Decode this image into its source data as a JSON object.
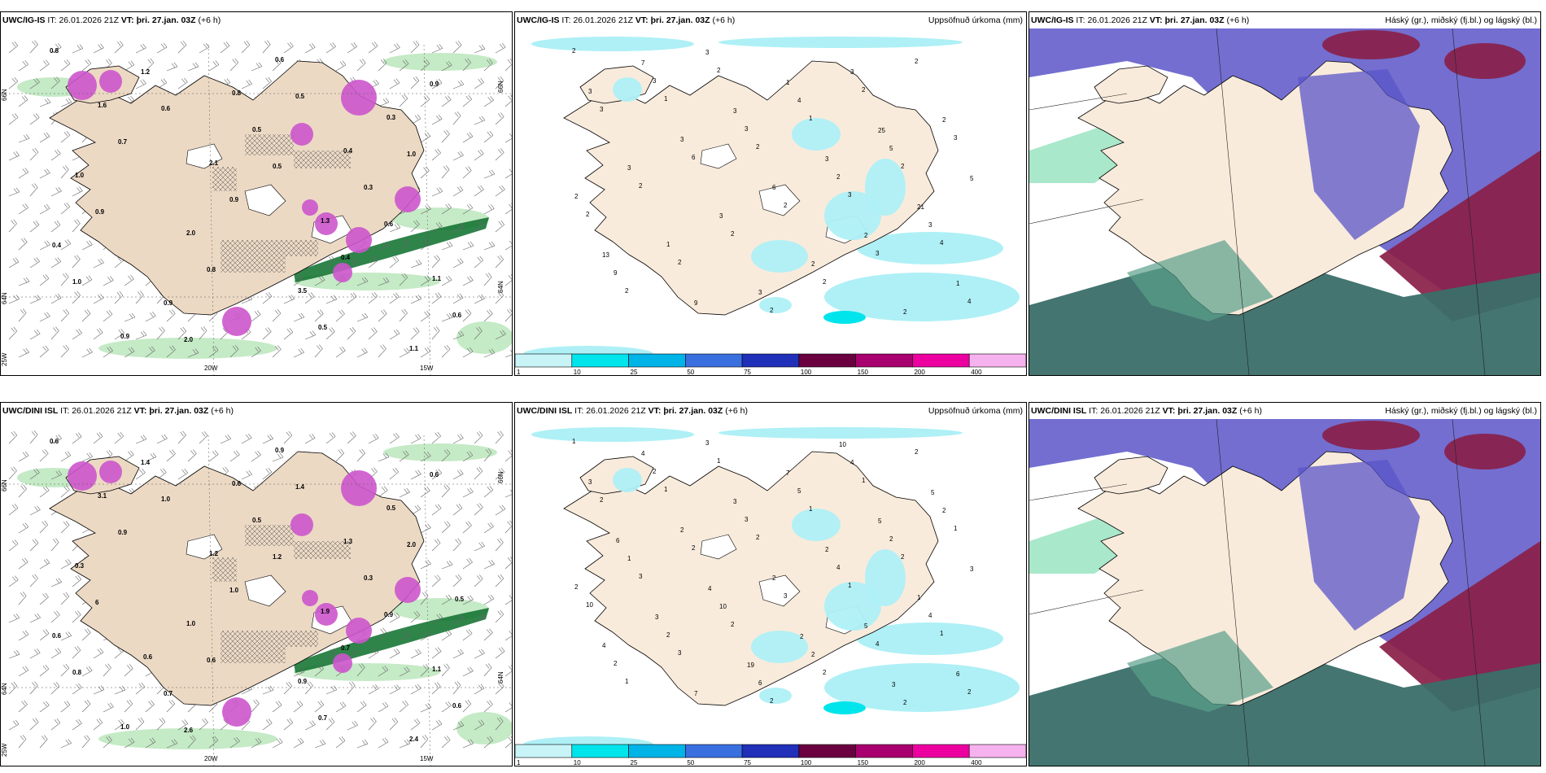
{
  "panels": [
    {
      "id": "top-barbs",
      "model": "UWC/IG-IS",
      "it_label": "IT:",
      "it_time": "26.01.2026 21Z",
      "vt_label": "VT:",
      "vt_time": "þri. 27.jan. 03Z",
      "lead": "(+6 h)",
      "right_title": "",
      "grid_labels": [
        "66N",
        "64N",
        "25W",
        "20W",
        "15W",
        "64N",
        "66N"
      ],
      "values": [
        "0.8",
        "0.6",
        "0.5",
        "0.6",
        "1.0",
        "2.0",
        "0.5",
        "1.0",
        "0.9",
        "0.8",
        "0.5",
        "0.9",
        "0.7",
        "0.9",
        "0.4",
        "0.6",
        "1.2",
        "0.5",
        "0.3",
        "0.4",
        "0.9",
        "0.6",
        "0.3",
        "1.0",
        "2.0",
        "3.5",
        "1.1",
        "1.6",
        "2.1",
        "1.3",
        "1.1",
        "0.9",
        "0.8",
        "0.4"
      ]
    },
    {
      "id": "top-precip",
      "model": "UWC/IG-IS",
      "it_label": "IT:",
      "it_time": "26.01.2026 21Z",
      "vt_label": "VT:",
      "vt_time": "þri. 27.jan. 03Z",
      "lead": "(+6 h)",
      "right_title": "Uppsöfnuð úrkoma (mm)",
      "values": [
        "2",
        "1",
        "2",
        "3",
        "4",
        "2",
        "2",
        "1",
        "2",
        "2",
        "2",
        "2",
        "2",
        "3",
        "2",
        "2",
        "2",
        "2",
        "3",
        "6",
        "2",
        "3",
        "4",
        "3",
        "3",
        "2",
        "3",
        "9",
        "3",
        "4",
        "5",
        "2",
        "1",
        "3",
        "3",
        "2",
        "3",
        "3",
        "2",
        "2",
        "3",
        "3",
        "6",
        "2",
        "1",
        "7",
        "3",
        "3",
        "21",
        "13",
        "9",
        "1",
        "25",
        "5"
      ]
    },
    {
      "id": "top-clouds",
      "model": "UWC/IG-IS",
      "it_label": "IT:",
      "it_time": "26.01.2026 21Z",
      "vt_label": "VT:",
      "vt_time": "þri. 27.jan. 03Z",
      "lead": "(+6 h)",
      "right_title": "Háský (gr.), miðský (fj.bl.) og lágský (bl.)"
    },
    {
      "id": "bottom-barbs",
      "model": "UWC/DINI ISL",
      "it_label": "IT:",
      "it_time": "26.01.2026 21Z",
      "vt_label": "VT:",
      "vt_time": "þri. 27.jan. 03Z",
      "lead": "(+6 h)",
      "right_title": "",
      "grid_labels": [
        "66N",
        "64N",
        "25W",
        "20W",
        "15W",
        "64N",
        "66N"
      ],
      "values": [
        "0.6",
        "1.0",
        "1.2",
        "0.9",
        "0.8",
        "2.6",
        "1.4",
        "2.0",
        "6",
        "0.6",
        "0.7",
        "0.6",
        "0.9",
        "1.0",
        "0.7",
        "0.6",
        "1.4",
        "0.5",
        "0.3",
        "0.6",
        "0.7",
        "0.9",
        "0.5",
        "0.3",
        "1.0",
        "0.9",
        "2.4",
        "3.1",
        "1.2",
        "1.9",
        "1.1",
        "1.0",
        "0.6",
        "1.3",
        "0.5",
        "0.6"
      ]
    },
    {
      "id": "bottom-precip",
      "model": "UWC/DINI ISL",
      "it_label": "IT:",
      "it_time": "26.01.2026 21Z",
      "vt_label": "VT:",
      "vt_time": "þri. 27.jan. 03Z",
      "lead": "(+6 h)",
      "right_title": "Uppsöfnuð úrkoma (mm)",
      "values": [
        "1",
        "1",
        "2",
        "1",
        "1",
        "1",
        "1",
        "1",
        "2",
        "10",
        "3",
        "2",
        "1",
        "1",
        "3",
        "2",
        "2",
        "2",
        "2",
        "2",
        "3",
        "4",
        "2",
        "2",
        "3",
        "4",
        "4",
        "2",
        "3",
        "5",
        "2",
        "2",
        "2",
        "6",
        "4",
        "2",
        "1",
        "10",
        "2",
        "2",
        "3",
        "2",
        "2",
        "5",
        "6",
        "4",
        "3",
        "2",
        "1",
        "4",
        "7",
        "7",
        "5",
        "3",
        "3",
        "19",
        "10",
        "5",
        "6",
        "4",
        "2",
        "3"
      ]
    },
    {
      "id": "bottom-clouds",
      "model": "UWC/DINI ISL",
      "it_label": "IT:",
      "it_time": "26.01.2026 21Z",
      "vt_label": "VT:",
      "vt_time": "þri. 27.jan. 03Z",
      "lead": "(+6 h)",
      "right_title": "Háský (gr.), miðský (fj.bl.) og lágský (bl.)"
    }
  ],
  "colorbar": {
    "ticks": [
      "1",
      "10",
      "25",
      "50",
      "75",
      "100",
      "150",
      "200",
      "400"
    ],
    "colors": [
      "#c8f4f8",
      "#00e4ec",
      "#00b4e8",
      "#3a6fe0",
      "#2030b8",
      "#6a0040",
      "#a8006e",
      "#ec00a0",
      "#f6b2ee"
    ]
  },
  "colors": {
    "land": "#f9ebdc",
    "snowland": "#ece0d2",
    "barbland": "#ecd9c4",
    "cyan": "#aef0f6",
    "green": "#bfe8c0",
    "darkgreen": "#0b6e2a",
    "magenta": "#cc55cc",
    "blue": "#5a55c8",
    "maroon": "#8a1e46",
    "teal": "#3a6e68",
    "white": "#ffffff"
  }
}
